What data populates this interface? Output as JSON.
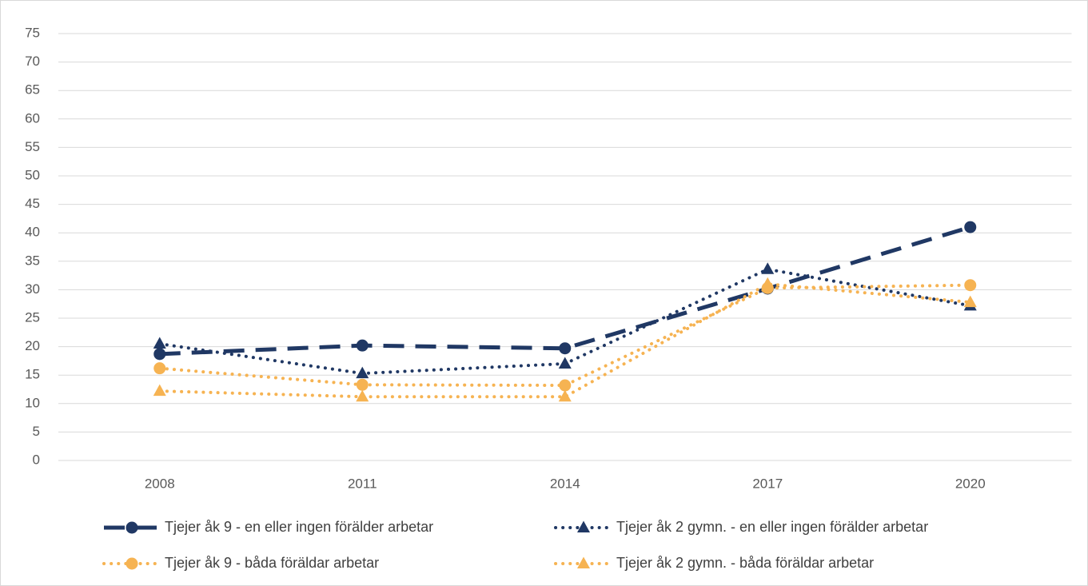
{
  "chart_data": {
    "type": "line",
    "categories": [
      "2008",
      "2011",
      "2014",
      "2017",
      "2020"
    ],
    "series": [
      {
        "name": "Tjejer åk 9 - en eller ingen förälder arbetar",
        "color": "#203864",
        "dash": "dashed",
        "marker": "circle",
        "values": [
          18.7,
          20.2,
          19.7,
          30.2,
          41.0
        ]
      },
      {
        "name": "Tjejer åk 2  gymn. - en eller ingen förälder arbetar",
        "color": "#203864",
        "dash": "dotted",
        "marker": "triangle",
        "values": [
          20.5,
          15.3,
          17.0,
          33.6,
          27.2
        ]
      },
      {
        "name": "Tjejer åk 9 - båda föräldar arbetar",
        "color": "#f6b352",
        "dash": "dotted",
        "marker": "circle",
        "values": [
          16.2,
          13.3,
          13.2,
          30.3,
          30.8
        ]
      },
      {
        "name": "Tjejer åk 2  gymn. - båda föräldar arbetar",
        "color": "#f6b352",
        "dash": "dotted",
        "marker": "triangle",
        "values": [
          12.2,
          11.2,
          11.2,
          31.0,
          27.8
        ]
      }
    ],
    "ylim": [
      0,
      75
    ],
    "yticks": [
      0,
      5,
      10,
      15,
      20,
      25,
      30,
      35,
      40,
      45,
      50,
      55,
      60,
      65,
      70,
      75
    ],
    "grid": true,
    "legend": "bottom"
  }
}
